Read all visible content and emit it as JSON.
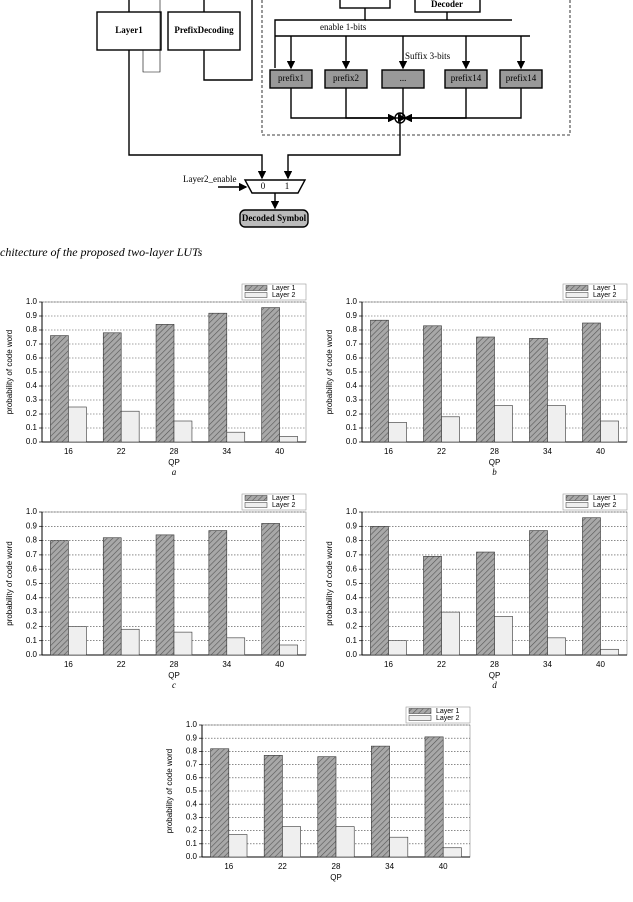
{
  "diagram": {
    "layer1": "Layer1",
    "prefix_decoding": "PrefixDecoding",
    "decoder": "Decoder",
    "enable_label": "enable 1-bits",
    "suffix_label": "Suffix 3-bits",
    "prefixes": [
      "prefix1",
      "prefix2",
      "...",
      "prefix14",
      "prefix14"
    ],
    "mux_enable": "Layer2_enable",
    "mux_inputs": [
      "0",
      "1"
    ],
    "output": "Decoded Symbol"
  },
  "caption": "chitecture of the proposed two-layer LUTs",
  "chart_data": [
    {
      "type": "bar",
      "sublabel": "a",
      "x_label": "QP",
      "y_label": "probability of code word",
      "categories": [
        "16",
        "22",
        "28",
        "34",
        "40"
      ],
      "series": [
        {
          "name": "Layer 1",
          "color": "#a8a8a8",
          "values": [
            0.76,
            0.78,
            0.84,
            0.92,
            0.96
          ]
        },
        {
          "name": "Layer 2",
          "color": "#efefef",
          "values": [
            0.25,
            0.22,
            0.15,
            0.07,
            0.04
          ]
        }
      ],
      "ylim": [
        0,
        1.0
      ],
      "yticks": [
        {
          "value": 0,
          "label": "0.0"
        },
        0.1,
        0.2,
        0.3,
        0.4,
        0.5,
        0.6,
        0.7,
        0.8,
        0.9,
        {
          "value": 1,
          "label": "1.0"
        }
      ],
      "grid": true,
      "legend": "top-right"
    },
    {
      "type": "bar",
      "sublabel": "b",
      "x_label": "QP",
      "y_label": "probability of code word",
      "categories": [
        "16",
        "22",
        "28",
        "34",
        "40"
      ],
      "series": [
        {
          "name": "Layer 1",
          "color": "#a8a8a8",
          "values": [
            0.87,
            0.83,
            0.75,
            0.74,
            0.85
          ]
        },
        {
          "name": "Layer 2",
          "color": "#efefef",
          "values": [
            0.14,
            0.18,
            0.26,
            0.26,
            0.15
          ]
        }
      ],
      "ylim": [
        0,
        1.0
      ],
      "yticks": [
        {
          "value": 0,
          "label": "0.0"
        },
        0.1,
        0.2,
        0.3,
        0.4,
        0.5,
        0.6,
        0.7,
        0.8,
        0.9,
        {
          "value": 1,
          "label": "1.0"
        }
      ],
      "grid": true,
      "legend": "top-right"
    },
    {
      "type": "bar",
      "sublabel": "c",
      "x_label": "QP",
      "y_label": "probability of code word",
      "categories": [
        "16",
        "22",
        "28",
        "34",
        "40"
      ],
      "series": [
        {
          "name": "Layer 1",
          "color": "#a8a8a8",
          "values": [
            0.8,
            0.82,
            0.84,
            0.87,
            0.92
          ]
        },
        {
          "name": "Layer 2",
          "color": "#efefef",
          "values": [
            0.2,
            0.18,
            0.16,
            0.12,
            0.07
          ]
        }
      ],
      "ylim": [
        0,
        1.0
      ],
      "yticks": [
        {
          "value": 0,
          "label": "0.0"
        },
        0.1,
        0.2,
        0.3,
        0.4,
        0.5,
        0.6,
        0.7,
        0.8,
        0.9,
        {
          "value": 1,
          "label": "1.0"
        }
      ],
      "grid": true,
      "legend": "top-right"
    },
    {
      "type": "bar",
      "sublabel": "d",
      "x_label": "QP",
      "y_label": "probability of code word",
      "categories": [
        "16",
        "22",
        "28",
        "34",
        "40"
      ],
      "series": [
        {
          "name": "Layer 1",
          "color": "#a8a8a8",
          "values": [
            0.9,
            0.69,
            0.72,
            0.87,
            0.96
          ]
        },
        {
          "name": "Layer 2",
          "color": "#efefef",
          "values": [
            0.1,
            0.3,
            0.27,
            0.12,
            0.04
          ]
        }
      ],
      "ylim": [
        0,
        1.0
      ],
      "yticks": [
        {
          "value": 0,
          "label": "0.0"
        },
        0.1,
        0.2,
        0.3,
        0.4,
        0.5,
        0.6,
        0.7,
        0.8,
        0.9,
        {
          "value": 1,
          "label": "1.0"
        }
      ],
      "grid": true,
      "legend": "top-right"
    },
    {
      "type": "bar",
      "x_label": "QP",
      "y_label": "probability of code word",
      "categories": [
        "16",
        "22",
        "28",
        "34",
        "40"
      ],
      "series": [
        {
          "name": "Layer 1",
          "color": "#a8a8a8",
          "values": [
            0.82,
            0.77,
            0.76,
            0.84,
            0.91
          ]
        },
        {
          "name": "Layer 2",
          "color": "#efefef",
          "values": [
            0.17,
            0.23,
            0.23,
            0.15,
            0.07
          ]
        }
      ],
      "ylim": [
        0,
        1.0
      ],
      "yticks": [
        {
          "value": 0,
          "label": "0.0"
        },
        0.1,
        0.2,
        0.3,
        0.4,
        0.5,
        0.6,
        0.7,
        0.8,
        0.9,
        {
          "value": 1,
          "label": "1.0"
        }
      ],
      "grid": true,
      "legend": "top-right"
    }
  ]
}
